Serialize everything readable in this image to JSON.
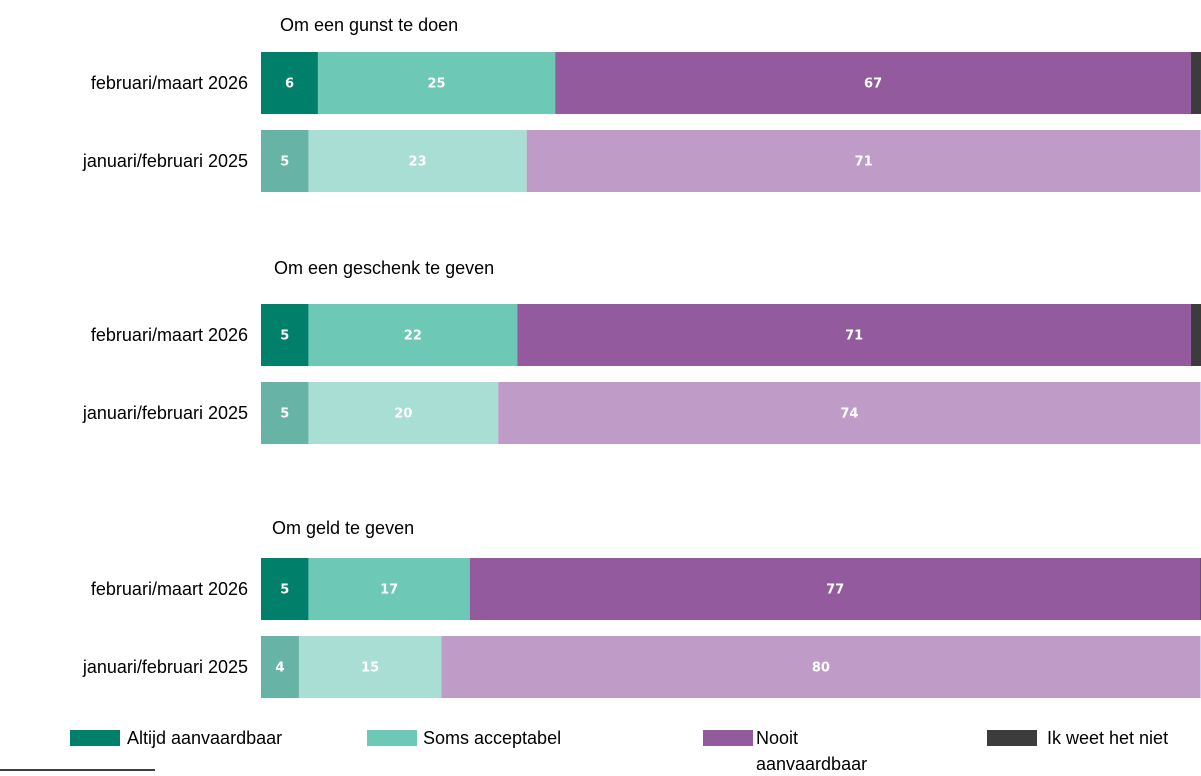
{
  "chart_data": [
    {
      "type": "bar",
      "orientation": "horizontal",
      "stacked": true,
      "title": "Om een gunst te doen",
      "categories": [
        "februari/maart 2026",
        "januari/februari 2025"
      ],
      "xlim": [
        0,
        100
      ],
      "series": [
        {
          "name": "Altijd aanvaardbaar",
          "colors": [
            "#00806a",
            "#67b3a5"
          ],
          "values": [
            6,
            5
          ]
        },
        {
          "name": "Soms acceptabel",
          "colors": [
            "#6dc8b6",
            "#a8ded3"
          ],
          "values": [
            25,
            23
          ]
        },
        {
          "name": "Nooit aanvaardbaar",
          "colors": [
            "#935b9e",
            "#bf9cc7"
          ],
          "values": [
            67,
            71
          ]
        },
        {
          "name": "Ik weet het niet",
          "colors": [
            "#3c3c3c",
            "#8a8a8a"
          ],
          "values": [
            2,
            null
          ]
        }
      ]
    },
    {
      "type": "bar",
      "orientation": "horizontal",
      "stacked": true,
      "title": "Om een geschenk te geven",
      "categories": [
        "februari/maart 2026",
        "januari/februari 2025"
      ],
      "xlim": [
        0,
        100
      ],
      "series": [
        {
          "name": "Altijd aanvaardbaar",
          "colors": [
            "#00806a",
            "#67b3a5"
          ],
          "values": [
            5,
            5
          ]
        },
        {
          "name": "Soms acceptabel",
          "colors": [
            "#6dc8b6",
            "#a8ded3"
          ],
          "values": [
            22,
            20
          ]
        },
        {
          "name": "Nooit aanvaardbaar",
          "colors": [
            "#935b9e",
            "#bf9cc7"
          ],
          "values": [
            71,
            74
          ]
        },
        {
          "name": "Ik weet het niet",
          "colors": [
            "#3c3c3c",
            "#8a8a8a"
          ],
          "values": [
            2,
            null
          ]
        }
      ]
    },
    {
      "type": "bar",
      "orientation": "horizontal",
      "stacked": true,
      "title": "Om geld te geven",
      "categories": [
        "februari/maart 2026",
        "januari/februari 2025"
      ],
      "xlim": [
        0,
        100
      ],
      "series": [
        {
          "name": "Altijd aanvaardbaar",
          "colors": [
            "#00806a",
            "#67b3a5"
          ],
          "values": [
            5,
            4
          ]
        },
        {
          "name": "Soms acceptabel",
          "colors": [
            "#6dc8b6",
            "#a8ded3"
          ],
          "values": [
            17,
            15
          ]
        },
        {
          "name": "Nooit aanvaardbaar",
          "colors": [
            "#935b9e",
            "#bf9cc7"
          ],
          "values": [
            77,
            80
          ]
        },
        {
          "name": "Ik weet het niet",
          "colors": [
            "#3c3c3c",
            "#8a8a8a"
          ],
          "values": [
            1,
            null
          ]
        }
      ]
    }
  ]
}
